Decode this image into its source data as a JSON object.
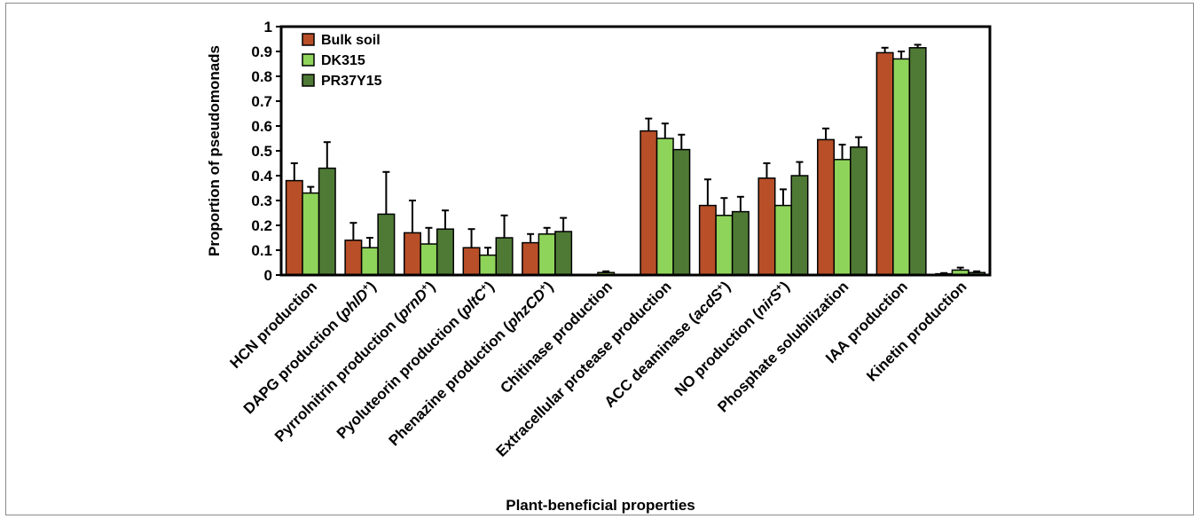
{
  "chart_data": {
    "type": "bar",
    "xlabel": "Plant-beneficial properties",
    "ylabel": "Proportion of pseudomonads",
    "ylim": [
      0,
      1
    ],
    "yticks": [
      "0",
      "0.1",
      "0.2",
      "0.3",
      "0.4",
      "0.5",
      "0.6",
      "0.7",
      "0.8",
      "0.9",
      "1"
    ],
    "grid": false,
    "legend_position": "top-left",
    "categories": [
      {
        "text": "HCN production",
        "sup": "",
        "italic": "",
        "tail": ""
      },
      {
        "text": "DAPG production (",
        "italic": "phlD",
        "sup": "+",
        "tail": ")"
      },
      {
        "text": "Pyrrolnitrin production (",
        "italic": "prnD",
        "sup": "+",
        "tail": ")"
      },
      {
        "text": "Pyoluteorin production (",
        "italic": "pltC",
        "sup": "+",
        "tail": ")"
      },
      {
        "text": "Phenazine production (",
        "italic": "phzCD",
        "sup": "+",
        "tail": ")"
      },
      {
        "text": "Chitinase production",
        "sup": "",
        "italic": "",
        "tail": ""
      },
      {
        "text": "Extracellular protease production",
        "sup": "",
        "italic": "",
        "tail": ""
      },
      {
        "text": "ACC deaminase (",
        "italic": "acdS",
        "sup": "+",
        "tail": ")"
      },
      {
        "text": "NO production (",
        "italic": "nirS",
        "sup": "+",
        "tail": ")"
      },
      {
        "text": "Phosphate solubilization",
        "sup": "",
        "italic": "",
        "tail": ""
      },
      {
        "text": "IAA production",
        "sup": "",
        "italic": "",
        "tail": ""
      },
      {
        "text": "Kinetin production",
        "sup": "",
        "italic": "",
        "tail": ""
      }
    ],
    "series": [
      {
        "name": "Bulk soil",
        "color": "#b84f28",
        "values": [
          0.38,
          0.14,
          0.17,
          0.11,
          0.13,
          0.0,
          0.58,
          0.28,
          0.39,
          0.545,
          0.895,
          0.005
        ],
        "errors": [
          0.07,
          0.07,
          0.13,
          0.075,
          0.035,
          0.0,
          0.05,
          0.105,
          0.06,
          0.045,
          0.02,
          0.003
        ]
      },
      {
        "name": "DK315",
        "color": "#8fd45a",
        "values": [
          0.33,
          0.11,
          0.125,
          0.08,
          0.165,
          0.01,
          0.55,
          0.24,
          0.28,
          0.465,
          0.87,
          0.02
        ],
        "errors": [
          0.025,
          0.04,
          0.065,
          0.03,
          0.025,
          0.005,
          0.06,
          0.07,
          0.065,
          0.06,
          0.03,
          0.01
        ]
      },
      {
        "name": "PR37Y15",
        "color": "#4f7a35",
        "values": [
          0.43,
          0.245,
          0.185,
          0.15,
          0.175,
          0.0,
          0.505,
          0.255,
          0.4,
          0.515,
          0.915,
          0.01
        ],
        "errors": [
          0.105,
          0.17,
          0.075,
          0.09,
          0.055,
          0.0,
          0.06,
          0.06,
          0.055,
          0.04,
          0.012,
          0.005
        ]
      }
    ]
  }
}
